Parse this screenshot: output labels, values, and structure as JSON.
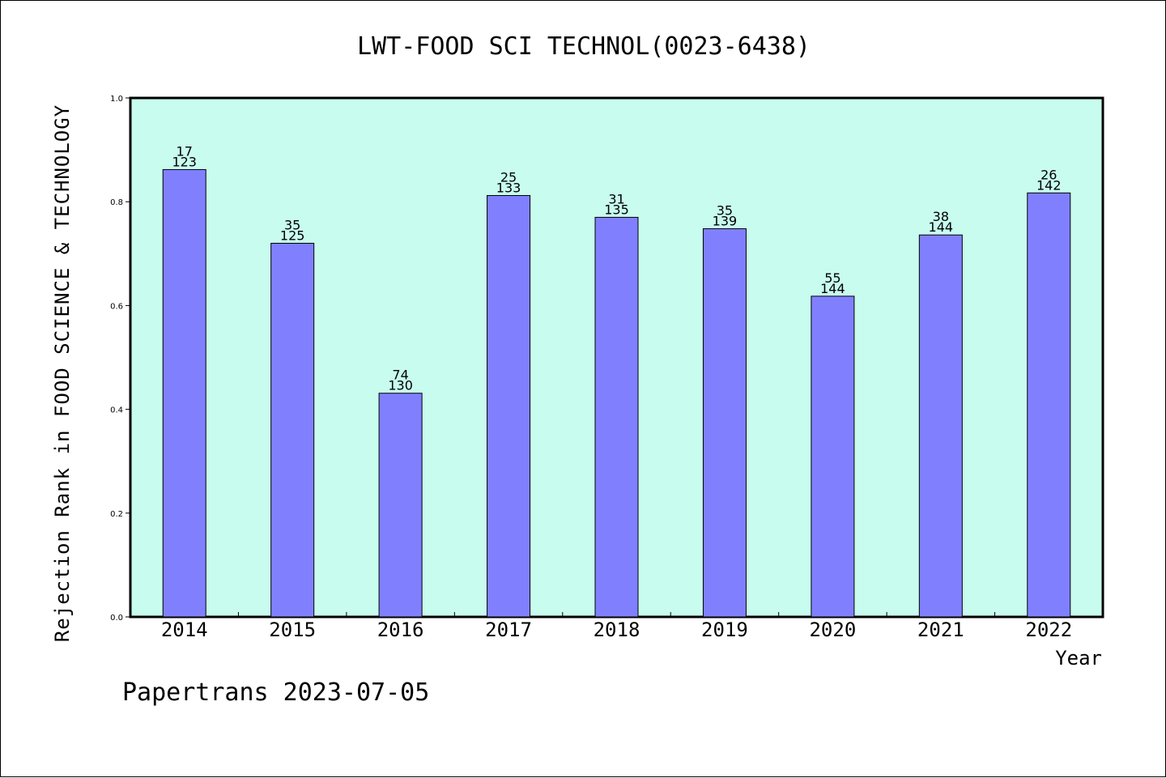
{
  "chart_data": {
    "type": "bar",
    "title": "LWT-FOOD SCI TECHNOL(0023-6438)",
    "xlabel": "Year",
    "ylabel": "Rejection Rank in FOOD SCIENCE & TECHNOLOGY",
    "ylim": [
      0,
      1.0
    ],
    "yticks": [
      "0.0",
      "0.2",
      "0.4",
      "0.6",
      "0.8",
      "1.0"
    ],
    "categories": [
      "2014",
      "2015",
      "2016",
      "2017",
      "2018",
      "2019",
      "2020",
      "2021",
      "2022"
    ],
    "values": [
      0.862,
      0.72,
      0.431,
      0.812,
      0.77,
      0.748,
      0.618,
      0.736,
      0.817
    ],
    "rank_labels": [
      "17",
      "35",
      "74",
      "25",
      "31",
      "35",
      "55",
      "38",
      "26"
    ],
    "total_labels": [
      "123",
      "125",
      "130",
      "133",
      "135",
      "139",
      "144",
      "144",
      "142"
    ],
    "grid": false,
    "colors": {
      "plot_bg": "#c8fcee",
      "bar": "#8080ff",
      "bar_stroke": "#000000"
    }
  },
  "footer": {
    "text": "Papertrans 2023-07-05"
  }
}
